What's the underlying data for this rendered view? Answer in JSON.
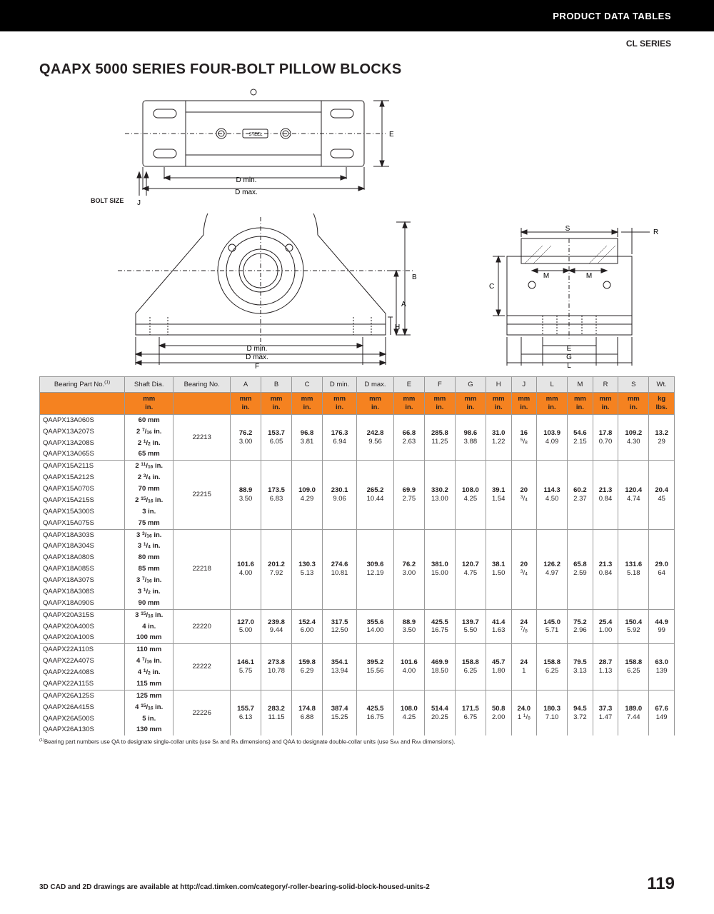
{
  "header": {
    "bar_text": "PRODUCT DATA TABLES",
    "series": "CL SERIES"
  },
  "title": "QAAPX 5000 SERIES FOUR-BOLT PILLOW BLOCKS",
  "diagram_labels": {
    "j": "J",
    "bolt_size": "BOLT SIZE",
    "dmin": "D min.",
    "dmax": "D max.",
    "e": "E",
    "f": "F",
    "a": "A",
    "b": "B",
    "h": "H",
    "s": "S",
    "r": "R",
    "c": "C",
    "m": "M",
    "g": "G",
    "l": "L",
    "steel": "STEEL"
  },
  "colors": {
    "header_bg": "#e5e5e5",
    "units_bg": "#f58220",
    "stroke": "#231f20"
  },
  "table": {
    "columns": [
      "Bearing Part No.(1)",
      "Shaft Dia.",
      "Bearing No.",
      "A",
      "B",
      "C",
      "D min.",
      "D max.",
      "E",
      "F",
      "G",
      "H",
      "J",
      "L",
      "M",
      "R",
      "S",
      "Wt."
    ],
    "unit_top": [
      "",
      "mm",
      "",
      "mm",
      "mm",
      "mm",
      "mm",
      "mm",
      "mm",
      "mm",
      "mm",
      "mm",
      "mm",
      "mm",
      "mm",
      "mm",
      "mm",
      "kg"
    ],
    "unit_bot": [
      "",
      "in.",
      "",
      "in.",
      "in.",
      "in.",
      "in.",
      "in.",
      "in.",
      "in.",
      "in.",
      "in.",
      "in.",
      "in.",
      "in.",
      "in.",
      "in.",
      "lbs."
    ],
    "groups": [
      {
        "parts": [
          {
            "pn": "QAAPX13A060S",
            "shaft": "60 mm"
          },
          {
            "pn": "QAAPX13A207S",
            "shaft": "2 7/16 in."
          },
          {
            "pn": "QAAPX13A208S",
            "shaft": "2 1/2 in."
          },
          {
            "pn": "QAAPX13A065S",
            "shaft": "65 mm"
          }
        ],
        "bearing": "22213",
        "mm": [
          "76.2",
          "153.7",
          "96.8",
          "176.3",
          "242.8",
          "66.8",
          "285.8",
          "98.6",
          "31.0",
          "16",
          "103.9",
          "54.6",
          "17.8",
          "109.2",
          "13.2"
        ],
        "in": [
          "3.00",
          "6.05",
          "3.81",
          "6.94",
          "9.56",
          "2.63",
          "11.25",
          "3.88",
          "1.22",
          "5/8",
          "4.09",
          "2.15",
          "0.70",
          "4.30",
          "29"
        ]
      },
      {
        "parts": [
          {
            "pn": "QAAPX15A211S",
            "shaft": "2 11/16 in."
          },
          {
            "pn": "QAAPX15A212S",
            "shaft": "2 3/4 in."
          },
          {
            "pn": "QAAPX15A070S",
            "shaft": "70 mm"
          },
          {
            "pn": "QAAPX15A215S",
            "shaft": "2 15/16 in."
          },
          {
            "pn": "QAAPX15A300S",
            "shaft": "3 in."
          },
          {
            "pn": "QAAPX15A075S",
            "shaft": "75 mm"
          }
        ],
        "bearing": "22215",
        "mm": [
          "88.9",
          "173.5",
          "109.0",
          "230.1",
          "265.2",
          "69.9",
          "330.2",
          "108.0",
          "39.1",
          "20",
          "114.3",
          "60.2",
          "21.3",
          "120.4",
          "20.4"
        ],
        "in": [
          "3.50",
          "6.83",
          "4.29",
          "9.06",
          "10.44",
          "2.75",
          "13.00",
          "4.25",
          "1.54",
          "3/4",
          "4.50",
          "2.37",
          "0.84",
          "4.74",
          "45"
        ]
      },
      {
        "parts": [
          {
            "pn": "QAAPX18A303S",
            "shaft": "3 3/16 in."
          },
          {
            "pn": "QAAPX18A304S",
            "shaft": "3 1/4 in."
          },
          {
            "pn": "QAAPX18A080S",
            "shaft": "80 mm"
          },
          {
            "pn": "QAAPX18A085S",
            "shaft": "85 mm"
          },
          {
            "pn": "QAAPX18A307S",
            "shaft": "3 7/16 in."
          },
          {
            "pn": "QAAPX18A308S",
            "shaft": "3 1/2 in."
          },
          {
            "pn": "QAAPX18A090S",
            "shaft": "90 mm"
          }
        ],
        "bearing": "22218",
        "mm": [
          "101.6",
          "201.2",
          "130.3",
          "274.6",
          "309.6",
          "76.2",
          "381.0",
          "120.7",
          "38.1",
          "20",
          "126.2",
          "65.8",
          "21.3",
          "131.6",
          "29.0"
        ],
        "in": [
          "4.00",
          "7.92",
          "5.13",
          "10.81",
          "12.19",
          "3.00",
          "15.00",
          "4.75",
          "1.50",
          "3/4",
          "4.97",
          "2.59",
          "0.84",
          "5.18",
          "64"
        ]
      },
      {
        "parts": [
          {
            "pn": "QAAPX20A315S",
            "shaft": "3 15/16 in."
          },
          {
            "pn": "QAAPX20A400S",
            "shaft": "4 in."
          },
          {
            "pn": "QAAPX20A100S",
            "shaft": "100 mm"
          }
        ],
        "bearing": "22220",
        "mm": [
          "127.0",
          "239.8",
          "152.4",
          "317.5",
          "355.6",
          "88.9",
          "425.5",
          "139.7",
          "41.4",
          "24",
          "145.0",
          "75.2",
          "25.4",
          "150.4",
          "44.9"
        ],
        "in": [
          "5.00",
          "9.44",
          "6.00",
          "12.50",
          "14.00",
          "3.50",
          "16.75",
          "5.50",
          "1.63",
          "7/8",
          "5.71",
          "2.96",
          "1.00",
          "5.92",
          "99"
        ]
      },
      {
        "parts": [
          {
            "pn": "QAAPX22A110S",
            "shaft": "110 mm"
          },
          {
            "pn": "QAAPX22A407S",
            "shaft": "4 7/16 in."
          },
          {
            "pn": "QAAPX22A408S",
            "shaft": "4 1/2 in."
          },
          {
            "pn": "QAAPX22A115S",
            "shaft": "115 mm"
          }
        ],
        "bearing": "22222",
        "mm": [
          "146.1",
          "273.8",
          "159.8",
          "354.1",
          "395.2",
          "101.6",
          "469.9",
          "158.8",
          "45.7",
          "24",
          "158.8",
          "79.5",
          "28.7",
          "158.8",
          "63.0"
        ],
        "in": [
          "5.75",
          "10.78",
          "6.29",
          "13.94",
          "15.56",
          "4.00",
          "18.50",
          "6.25",
          "1.80",
          "1",
          "6.25",
          "3.13",
          "1.13",
          "6.25",
          "139"
        ]
      },
      {
        "parts": [
          {
            "pn": "QAAPX26A125S",
            "shaft": "125 mm"
          },
          {
            "pn": "QAAPX26A415S",
            "shaft": "4 15/16 in."
          },
          {
            "pn": "QAAPX26A500S",
            "shaft": "5 in."
          },
          {
            "pn": "QAAPX26A130S",
            "shaft": "130 mm"
          }
        ],
        "bearing": "22226",
        "mm": [
          "155.7",
          "283.2",
          "174.8",
          "387.4",
          "425.5",
          "108.0",
          "514.4",
          "171.5",
          "50.8",
          "24.0",
          "180.3",
          "94.5",
          "37.3",
          "189.0",
          "67.6"
        ],
        "in": [
          "6.13",
          "11.15",
          "6.88",
          "15.25",
          "16.75",
          "4.25",
          "20.25",
          "6.75",
          "2.00",
          "1 1/8",
          "7.10",
          "3.72",
          "1.47",
          "7.44",
          "149"
        ]
      }
    ]
  },
  "footnote": "(1)Bearing part numbers use QA to designate single-collar units (use SA and RA dimensions) and QAA to designate double-collar units (use SAA and RAA dimensions).",
  "footer": {
    "cad": "3D CAD and 2D drawings are available at http://cad.timken.com/category/-roller-bearing-solid-block-housed-units-2",
    "page": "119"
  }
}
